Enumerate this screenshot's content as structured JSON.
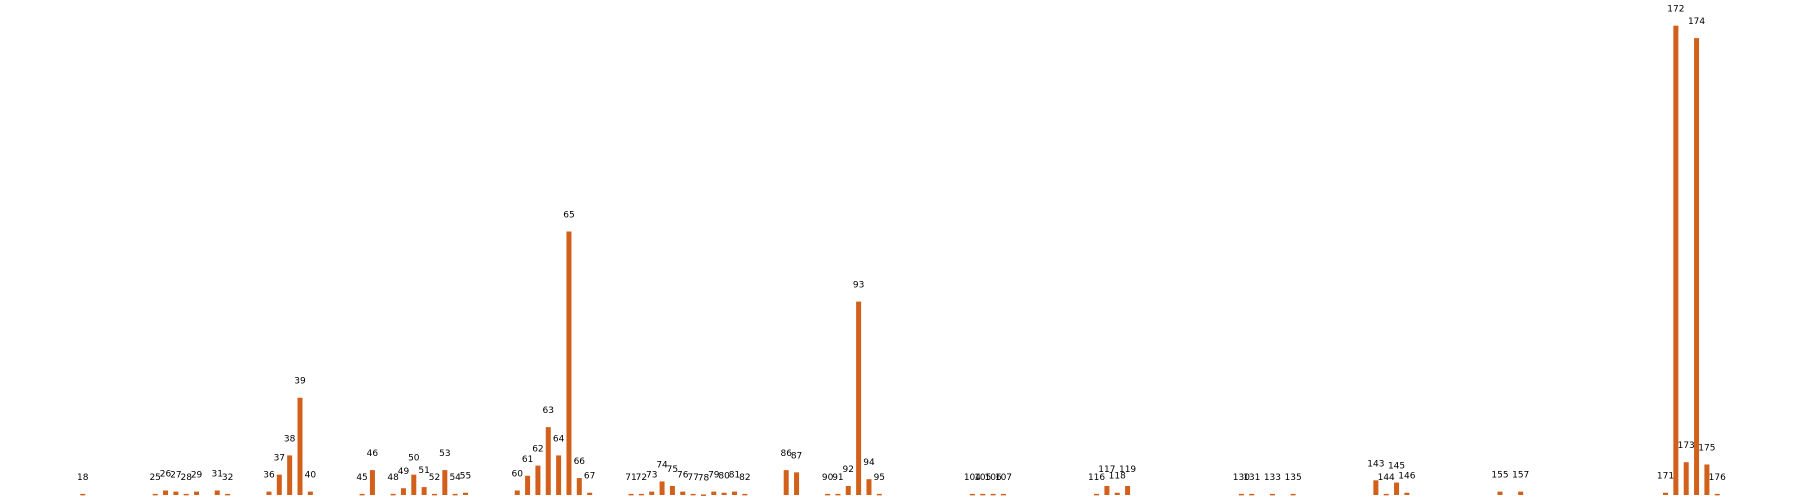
{
  "chart_data": {
    "type": "bar",
    "color": "#d2601a",
    "x": [
      18,
      25,
      26,
      27,
      28,
      29,
      31,
      32,
      36,
      37,
      38,
      39,
      40,
      45,
      46,
      48,
      49,
      50,
      51,
      52,
      53,
      54,
      55,
      60,
      61,
      62,
      63,
      64,
      65,
      66,
      67,
      71,
      72,
      73,
      74,
      75,
      76,
      77,
      78,
      79,
      80,
      81,
      82,
      86,
      87,
      90,
      91,
      92,
      93,
      94,
      95,
      104,
      105,
      106,
      107,
      116,
      117,
      118,
      119,
      130,
      131,
      133,
      135,
      143,
      144,
      145,
      146,
      155,
      157,
      171,
      172,
      173,
      174,
      175,
      176
    ],
    "values": [
      1,
      1,
      4,
      3,
      1,
      3,
      4,
      1,
      3,
      18,
      35,
      86,
      3,
      1,
      22,
      1,
      6,
      18,
      7,
      1,
      22,
      1,
      2,
      4,
      17,
      26,
      60,
      35,
      233,
      15,
      2,
      1,
      1,
      3,
      12,
      8,
      3,
      1,
      0.5,
      3,
      2,
      3,
      1,
      22,
      20,
      1,
      1,
      8,
      171,
      14,
      1,
      1,
      1,
      1,
      1,
      1,
      8,
      2,
      8,
      1,
      1,
      1,
      1,
      13,
      1,
      11,
      2,
      3,
      3,
      2,
      415,
      29,
      404,
      27,
      1
    ],
    "xlim": [
      10,
      184
    ],
    "ylim": [
      0,
      420
    ]
  }
}
